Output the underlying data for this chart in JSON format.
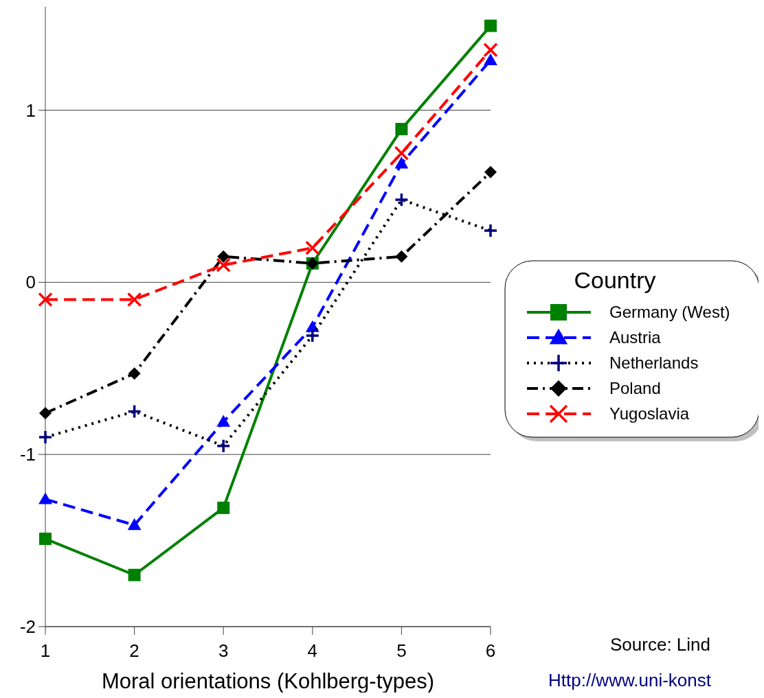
{
  "chart_data": {
    "type": "line",
    "xlabel": "Moral orientations (Kohlberg-types)",
    "legend_title": "Country",
    "x": [
      1,
      2,
      3,
      4,
      5,
      6
    ],
    "xlim": [
      1,
      6
    ],
    "xticks": [
      1,
      2,
      3,
      4,
      5,
      6
    ],
    "ylim": [
      -2,
      1.6
    ],
    "yticks": [
      -2,
      -1,
      0,
      1
    ],
    "grid": "y",
    "legend": "right",
    "series": [
      {
        "name": "Germany (West)",
        "color": "#008000",
        "marker": "square",
        "line_style": "solid",
        "values": [
          -1.49,
          -1.7,
          -1.31,
          0.11,
          0.89,
          1.49
        ]
      },
      {
        "name": "Austria",
        "color": "#0000ff",
        "marker": "triangle",
        "line_style": "dashed",
        "values": [
          -1.26,
          -1.41,
          -0.81,
          -0.26,
          0.69,
          1.29
        ]
      },
      {
        "name": "Netherlands",
        "color": "#000080",
        "marker": "plus",
        "line_style": "dotted",
        "values": [
          -0.9,
          -0.75,
          -0.95,
          -0.31,
          0.48,
          0.3
        ]
      },
      {
        "name": "Poland",
        "color": "#000000",
        "marker": "diamond",
        "line_style": "dashdot",
        "values": [
          -0.76,
          -0.53,
          0.15,
          0.11,
          0.15,
          0.64
        ]
      },
      {
        "name": "Yugoslavia",
        "color": "#ff0000",
        "marker": "cross",
        "line_style": "dashed",
        "values": [
          -0.1,
          -0.1,
          0.1,
          0.2,
          0.75,
          1.35
        ]
      }
    ],
    "annotations": [
      "Source: Lind",
      "Http://www.uni-konst"
    ]
  }
}
